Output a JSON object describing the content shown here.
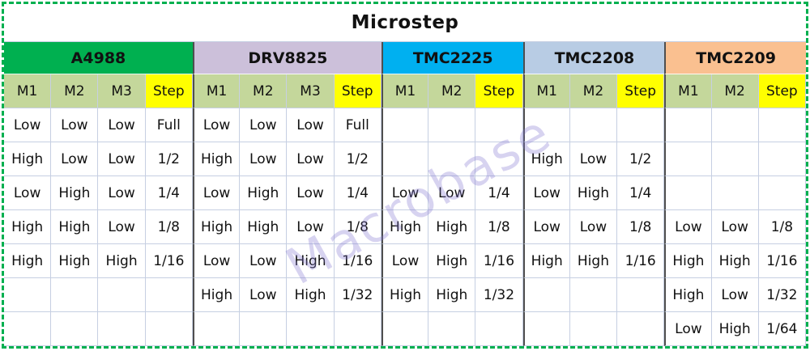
{
  "title": "Microstep",
  "watermark": "Macrobase",
  "colors": {
    "selection_border": "#00b050",
    "gridline": "#c6cfe2",
    "section_separator": "#4f4f4f",
    "pin_header_bg": "#c4d79b",
    "step_header_bg": "#ffff00"
  },
  "table": {
    "row_count": 7,
    "sections": [
      {
        "name": "A4988",
        "color": "#00b050",
        "columns": [
          "M1",
          "M2",
          "M3",
          "Step"
        ],
        "rows": [
          [
            "Low",
            "Low",
            "Low",
            "Full"
          ],
          [
            "High",
            "Low",
            "Low",
            "1/2"
          ],
          [
            "Low",
            "High",
            "Low",
            "1/4"
          ],
          [
            "High",
            "High",
            "Low",
            "1/8"
          ],
          [
            "High",
            "High",
            "High",
            "1/16"
          ],
          [
            "",
            "",
            "",
            ""
          ],
          [
            "",
            "",
            "",
            ""
          ]
        ]
      },
      {
        "name": "DRV8825",
        "color": "#ccc0da",
        "columns": [
          "M1",
          "M2",
          "M3",
          "Step"
        ],
        "rows": [
          [
            "Low",
            "Low",
            "Low",
            "Full"
          ],
          [
            "High",
            "Low",
            "Low",
            "1/2"
          ],
          [
            "Low",
            "High",
            "Low",
            "1/4"
          ],
          [
            "High",
            "High",
            "Low",
            "1/8"
          ],
          [
            "Low",
            "Low",
            "High",
            "1/16"
          ],
          [
            "High",
            "Low",
            "High",
            "1/32"
          ],
          [
            "",
            "",
            "",
            ""
          ]
        ]
      },
      {
        "name": "TMC2225",
        "color": "#00b0f0",
        "columns": [
          "M1",
          "M2",
          "Step"
        ],
        "rows": [
          [
            "",
            "",
            ""
          ],
          [
            "",
            "",
            ""
          ],
          [
            "Low",
            "Low",
            "1/4"
          ],
          [
            "High",
            "High",
            "1/8"
          ],
          [
            "Low",
            "High",
            "1/16"
          ],
          [
            "High",
            "High",
            "1/32"
          ],
          [
            "",
            "",
            ""
          ]
        ]
      },
      {
        "name": "TMC2208",
        "color": "#b8cce4",
        "columns": [
          "M1",
          "M2",
          "Step"
        ],
        "rows": [
          [
            "",
            "",
            ""
          ],
          [
            "High",
            "Low",
            "1/2"
          ],
          [
            "Low",
            "High",
            "1/4"
          ],
          [
            "Low",
            "Low",
            "1/8"
          ],
          [
            "High",
            "High",
            "1/16"
          ],
          [
            "",
            "",
            ""
          ],
          [
            "",
            "",
            ""
          ]
        ]
      },
      {
        "name": "TMC2209",
        "color": "#fac090",
        "columns": [
          "M1",
          "M2",
          "Step"
        ],
        "rows": [
          [
            "",
            "",
            ""
          ],
          [
            "",
            "",
            ""
          ],
          [
            "",
            "",
            ""
          ],
          [
            "Low",
            "Low",
            "1/8"
          ],
          [
            "High",
            "High",
            "1/16"
          ],
          [
            "High",
            "Low",
            "1/32"
          ],
          [
            "Low",
            "High",
            "1/64"
          ]
        ]
      }
    ]
  }
}
